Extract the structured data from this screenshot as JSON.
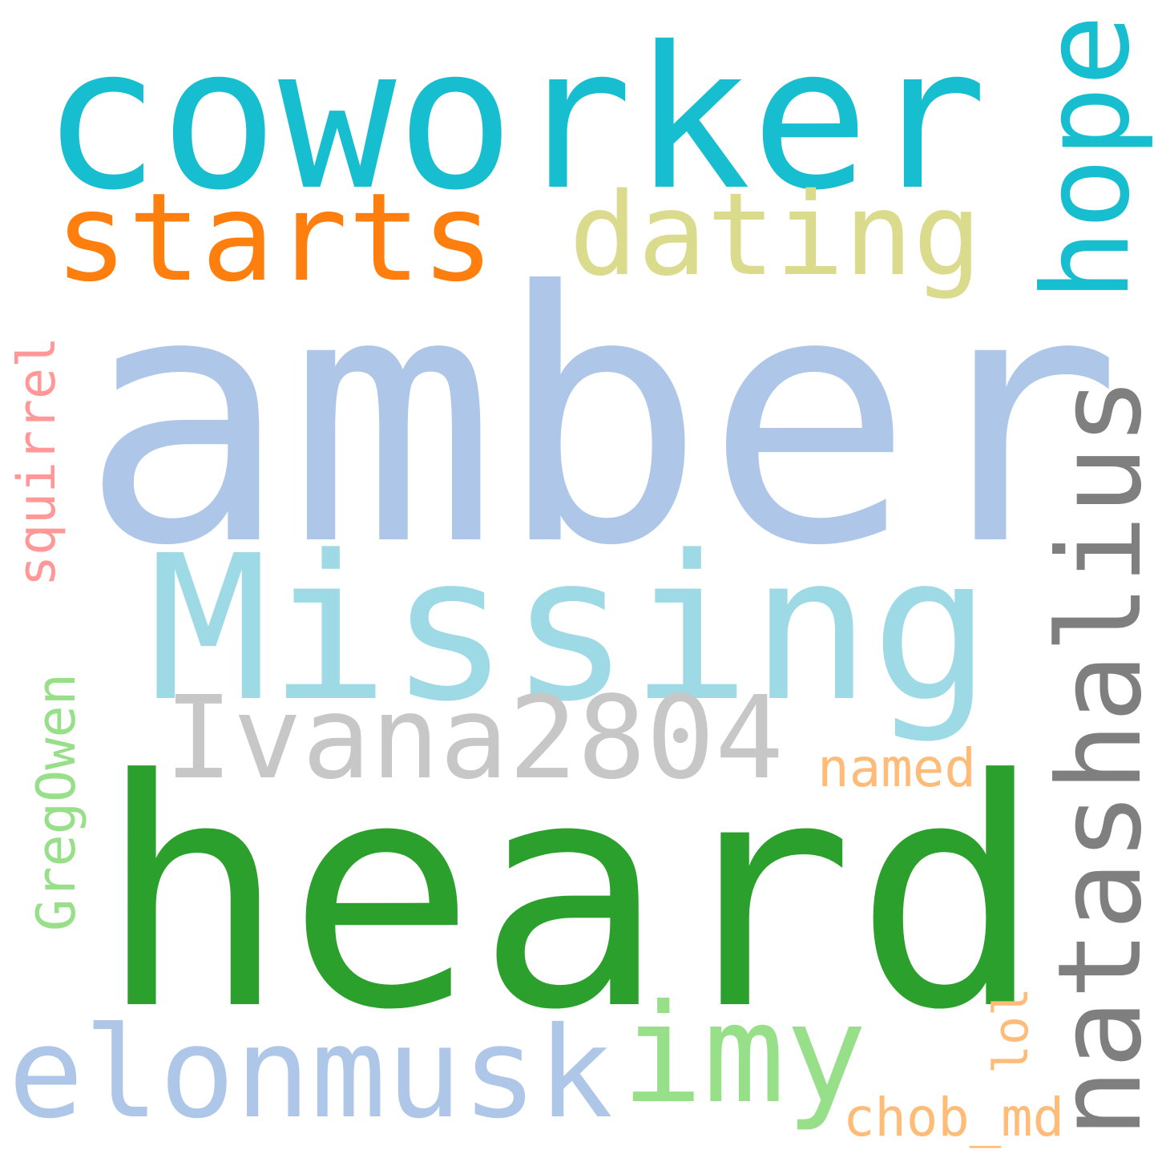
{
  "words": [
    {
      "key": "amber",
      "text": "amber",
      "color": "#aec7e8",
      "orientation": "horizontal"
    },
    {
      "key": "heard",
      "text": "heard",
      "color": "#2ca02c",
      "orientation": "horizontal"
    },
    {
      "key": "coworker",
      "text": "coworker",
      "color": "#17becf",
      "orientation": "horizontal"
    },
    {
      "key": "missing",
      "text": "Missing",
      "color": "#9edae5",
      "orientation": "horizontal"
    },
    {
      "key": "natashalius",
      "text": "natashalius",
      "color": "#7f7f7f",
      "orientation": "vertical"
    },
    {
      "key": "starts",
      "text": "starts",
      "color": "#ff7f0e",
      "orientation": "horizontal"
    },
    {
      "key": "dating",
      "text": "dating",
      "color": "#dbdb8d",
      "orientation": "horizontal"
    },
    {
      "key": "hope",
      "text": "hope",
      "color": "#17becf",
      "orientation": "vertical"
    },
    {
      "key": "ivana",
      "text": "Ivana2804",
      "color": "#c7c7c7",
      "orientation": "horizontal"
    },
    {
      "key": "elonmusk",
      "text": "elonmusk",
      "color": "#aec7e8",
      "orientation": "horizontal"
    },
    {
      "key": "imy",
      "text": "imy",
      "color": "#98df8a",
      "orientation": "horizontal"
    },
    {
      "key": "squirrel",
      "text": "squirrel",
      "color": "#ff9896",
      "orientation": "vertical"
    },
    {
      "key": "gregowen",
      "text": "GregOwen",
      "color": "#98df8a",
      "orientation": "vertical"
    },
    {
      "key": "named",
      "text": "named",
      "color": "#ffbb78",
      "orientation": "horizontal"
    },
    {
      "key": "lol",
      "text": "lol",
      "color": "#ffbb78",
      "orientation": "vertical"
    },
    {
      "key": "chob",
      "text": "chob_md",
      "color": "#ffbb78",
      "orientation": "horizontal"
    }
  ]
}
